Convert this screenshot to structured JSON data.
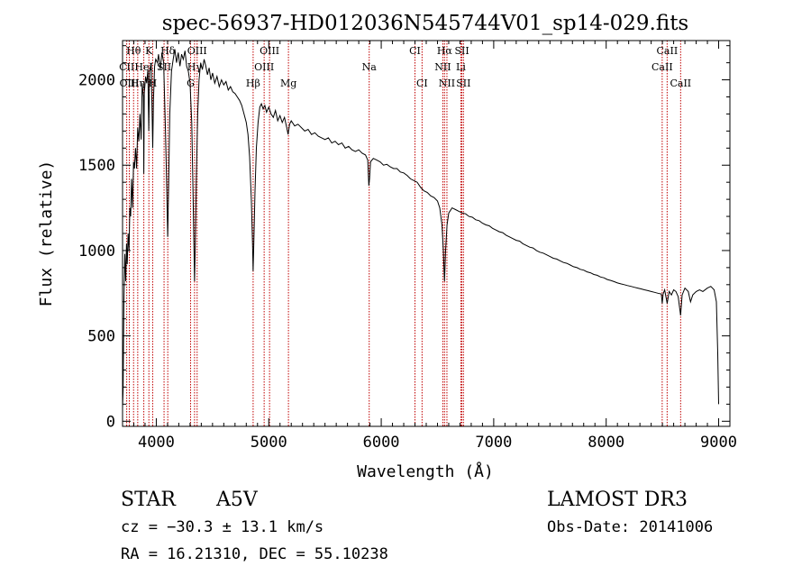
{
  "chart_data": {
    "type": "line",
    "title": "spec-56937-HD012036N545744V01_sp14-029.fits",
    "xlabel": "Wavelength (Å)",
    "ylabel": "Flux (relative)",
    "xlim": [
      3700,
      9100
    ],
    "ylim": [
      -30,
      2230
    ],
    "x_ticks": [
      4000,
      5000,
      6000,
      7000,
      8000,
      9000
    ],
    "y_ticks": [
      0,
      500,
      1000,
      1500,
      2000
    ],
    "series": [
      {
        "name": "flux",
        "points": [
          [
            3700,
            80
          ],
          [
            3705,
            180
          ],
          [
            3712,
            700
          ],
          [
            3720,
            980
          ],
          [
            3728,
            820
          ],
          [
            3735,
            1040
          ],
          [
            3742,
            920
          ],
          [
            3750,
            1100
          ],
          [
            3758,
            1000
          ],
          [
            3765,
            1250
          ],
          [
            3772,
            1200
          ],
          [
            3780,
            1420
          ],
          [
            3790,
            1250
          ],
          [
            3798,
            1520
          ],
          [
            3806,
            1480
          ],
          [
            3815,
            1600
          ],
          [
            3825,
            1480
          ],
          [
            3835,
            1720
          ],
          [
            3845,
            1640
          ],
          [
            3855,
            1800
          ],
          [
            3865,
            1650
          ],
          [
            3875,
            1980
          ],
          [
            3885,
            1900
          ],
          [
            3889,
            1450
          ],
          [
            3893,
            1920
          ],
          [
            3905,
            2020
          ],
          [
            3915,
            1980
          ],
          [
            3925,
            2060
          ],
          [
            3933,
            1700
          ],
          [
            3940,
            2050
          ],
          [
            3955,
            2100
          ],
          [
            3968,
            1600
          ],
          [
            3975,
            1880
          ],
          [
            3985,
            2080
          ],
          [
            3995,
            2120
          ],
          [
            4010,
            2100
          ],
          [
            4020,
            2150
          ],
          [
            4035,
            2060
          ],
          [
            4050,
            2160
          ],
          [
            4065,
            2100
          ],
          [
            4080,
            1750
          ],
          [
            4092,
            1400
          ],
          [
            4101,
            1080
          ],
          [
            4110,
            1400
          ],
          [
            4120,
            1800
          ],
          [
            4135,
            2050
          ],
          [
            4150,
            2120
          ],
          [
            4165,
            2180
          ],
          [
            4180,
            2100
          ],
          [
            4195,
            2160
          ],
          [
            4210,
            2080
          ],
          [
            4225,
            2150
          ],
          [
            4240,
            2120
          ],
          [
            4255,
            2170
          ],
          [
            4270,
            2080
          ],
          [
            4285,
            2050
          ],
          [
            4300,
            1980
          ],
          [
            4315,
            1750
          ],
          [
            4325,
            1400
          ],
          [
            4335,
            1000
          ],
          [
            4340,
            820
          ],
          [
            4346,
            1000
          ],
          [
            4355,
            1400
          ],
          [
            4368,
            1800
          ],
          [
            4380,
            2000
          ],
          [
            4395,
            2100
          ],
          [
            4410,
            2060
          ],
          [
            4425,
            2120
          ],
          [
            4440,
            2080
          ],
          [
            4455,
            2030
          ],
          [
            4470,
            2070
          ],
          [
            4485,
            2000
          ],
          [
            4500,
            2040
          ],
          [
            4520,
            1980
          ],
          [
            4540,
            2020
          ],
          [
            4560,
            1960
          ],
          [
            4580,
            2000
          ],
          [
            4600,
            1970
          ],
          [
            4620,
            1990
          ],
          [
            4640,
            1940
          ],
          [
            4660,
            1960
          ],
          [
            4680,
            1930
          ],
          [
            4700,
            1920
          ],
          [
            4720,
            1900
          ],
          [
            4740,
            1880
          ],
          [
            4760,
            1850
          ],
          [
            4780,
            1800
          ],
          [
            4800,
            1750
          ],
          [
            4815,
            1680
          ],
          [
            4830,
            1550
          ],
          [
            4845,
            1300
          ],
          [
            4855,
            1050
          ],
          [
            4861,
            880
          ],
          [
            4867,
            1050
          ],
          [
            4878,
            1350
          ],
          [
            4890,
            1600
          ],
          [
            4905,
            1750
          ],
          [
            4920,
            1840
          ],
          [
            4935,
            1860
          ],
          [
            4950,
            1830
          ],
          [
            4965,
            1850
          ],
          [
            4980,
            1810
          ],
          [
            5000,
            1840
          ],
          [
            5020,
            1800
          ],
          [
            5040,
            1780
          ],
          [
            5060,
            1820
          ],
          [
            5080,
            1760
          ],
          [
            5100,
            1790
          ],
          [
            5120,
            1750
          ],
          [
            5140,
            1780
          ],
          [
            5160,
            1720
          ],
          [
            5172,
            1680
          ],
          [
            5185,
            1740
          ],
          [
            5200,
            1760
          ],
          [
            5230,
            1730
          ],
          [
            5260,
            1740
          ],
          [
            5290,
            1720
          ],
          [
            5320,
            1700
          ],
          [
            5350,
            1710
          ],
          [
            5380,
            1680
          ],
          [
            5410,
            1690
          ],
          [
            5440,
            1670
          ],
          [
            5470,
            1660
          ],
          [
            5500,
            1650
          ],
          [
            5530,
            1660
          ],
          [
            5560,
            1630
          ],
          [
            5590,
            1640
          ],
          [
            5620,
            1620
          ],
          [
            5650,
            1630
          ],
          [
            5680,
            1600
          ],
          [
            5710,
            1610
          ],
          [
            5740,
            1590
          ],
          [
            5770,
            1580
          ],
          [
            5800,
            1590
          ],
          [
            5830,
            1570
          ],
          [
            5860,
            1560
          ],
          [
            5880,
            1530
          ],
          [
            5890,
            1380
          ],
          [
            5896,
            1420
          ],
          [
            5905,
            1520
          ],
          [
            5930,
            1540
          ],
          [
            5960,
            1530
          ],
          [
            5990,
            1520
          ],
          [
            6020,
            1500
          ],
          [
            6050,
            1505
          ],
          [
            6080,
            1490
          ],
          [
            6110,
            1480
          ],
          [
            6140,
            1480
          ],
          [
            6170,
            1460
          ],
          [
            6200,
            1455
          ],
          [
            6230,
            1440
          ],
          [
            6260,
            1420
          ],
          [
            6290,
            1410
          ],
          [
            6320,
            1400
          ],
          [
            6350,
            1370
          ],
          [
            6380,
            1350
          ],
          [
            6410,
            1340
          ],
          [
            6440,
            1320
          ],
          [
            6470,
            1310
          ],
          [
            6500,
            1290
          ],
          [
            6520,
            1250
          ],
          [
            6540,
            1150
          ],
          [
            6552,
            1000
          ],
          [
            6563,
            820
          ],
          [
            6572,
            1000
          ],
          [
            6585,
            1150
          ],
          [
            6600,
            1220
          ],
          [
            6630,
            1250
          ],
          [
            6660,
            1240
          ],
          [
            6690,
            1230
          ],
          [
            6720,
            1220
          ],
          [
            6750,
            1215
          ],
          [
            6780,
            1200
          ],
          [
            6810,
            1195
          ],
          [
            6840,
            1180
          ],
          [
            6870,
            1175
          ],
          [
            6900,
            1160
          ],
          [
            6930,
            1150
          ],
          [
            6960,
            1145
          ],
          [
            6990,
            1130
          ],
          [
            7020,
            1120
          ],
          [
            7050,
            1110
          ],
          [
            7080,
            1105
          ],
          [
            7110,
            1090
          ],
          [
            7140,
            1080
          ],
          [
            7170,
            1070
          ],
          [
            7200,
            1060
          ],
          [
            7230,
            1055
          ],
          [
            7260,
            1040
          ],
          [
            7290,
            1030
          ],
          [
            7320,
            1020
          ],
          [
            7350,
            1015
          ],
          [
            7380,
            1000
          ],
          [
            7410,
            990
          ],
          [
            7440,
            985
          ],
          [
            7470,
            975
          ],
          [
            7500,
            965
          ],
          [
            7530,
            955
          ],
          [
            7560,
            950
          ],
          [
            7590,
            940
          ],
          [
            7620,
            930
          ],
          [
            7650,
            925
          ],
          [
            7680,
            915
          ],
          [
            7710,
            905
          ],
          [
            7740,
            900
          ],
          [
            7770,
            890
          ],
          [
            7800,
            885
          ],
          [
            7830,
            875
          ],
          [
            7860,
            870
          ],
          [
            7890,
            860
          ],
          [
            7920,
            855
          ],
          [
            7950,
            845
          ],
          [
            7980,
            840
          ],
          [
            8010,
            830
          ],
          [
            8040,
            825
          ],
          [
            8070,
            818
          ],
          [
            8100,
            810
          ],
          [
            8130,
            805
          ],
          [
            8160,
            800
          ],
          [
            8190,
            795
          ],
          [
            8220,
            790
          ],
          [
            8250,
            785
          ],
          [
            8280,
            780
          ],
          [
            8310,
            775
          ],
          [
            8340,
            770
          ],
          [
            8370,
            765
          ],
          [
            8400,
            760
          ],
          [
            8430,
            755
          ],
          [
            8460,
            750
          ],
          [
            8490,
            745
          ],
          [
            8498,
            690
          ],
          [
            8506,
            745
          ],
          [
            8520,
            770
          ],
          [
            8542,
            690
          ],
          [
            8560,
            760
          ],
          [
            8580,
            740
          ],
          [
            8600,
            770
          ],
          [
            8620,
            760
          ],
          [
            8640,
            730
          ],
          [
            8662,
            620
          ],
          [
            8675,
            740
          ],
          [
            8700,
            780
          ],
          [
            8730,
            760
          ],
          [
            8750,
            700
          ],
          [
            8770,
            740
          ],
          [
            8800,
            760
          ],
          [
            8830,
            770
          ],
          [
            8860,
            760
          ],
          [
            8900,
            780
          ],
          [
            8930,
            790
          ],
          [
            8960,
            770
          ],
          [
            8980,
            700
          ],
          [
            8992,
            400
          ],
          [
            9000,
            100
          ]
        ]
      }
    ],
    "lines": [
      {
        "label": "Hθ",
        "wavelength": 3798,
        "row": 1
      },
      {
        "label": "CII",
        "wavelength": 3737,
        "row": 2
      },
      {
        "label": "OIII",
        "wavelength": 3760,
        "row": 3
      },
      {
        "label": "Hη",
        "wavelength": 3835,
        "row": 3
      },
      {
        "label": "HeI",
        "wavelength": 3889,
        "row": 2
      },
      {
        "label": "K",
        "wavelength": 3934,
        "row": 1
      },
      {
        "label": "H",
        "wavelength": 3968,
        "row": 3
      },
      {
        "label": "SII",
        "wavelength": 4069,
        "row": 2
      },
      {
        "label": "Hδ",
        "wavelength": 4102,
        "row": 1
      },
      {
        "label": "Hγ",
        "wavelength": 4340,
        "row": 2
      },
      {
        "label": "OIII",
        "wavelength": 4363,
        "row": 1
      },
      {
        "label": "G",
        "wavelength": 4305,
        "row": 3
      },
      {
        "label": "Hβ",
        "wavelength": 4861,
        "row": 3
      },
      {
        "label": "OIII",
        "wavelength": 4959,
        "row": 2
      },
      {
        "label": "OIII",
        "wavelength": 5007,
        "row": 1
      },
      {
        "label": "Mg",
        "wavelength": 5175,
        "row": 3
      },
      {
        "label": "Na",
        "wavelength": 5893,
        "row": 2
      },
      {
        "label": "CI",
        "wavelength": 6300,
        "row": 1
      },
      {
        "label": "CI",
        "wavelength": 6363,
        "row": 3
      },
      {
        "label": "Hα",
        "wavelength": 6563,
        "row": 1
      },
      {
        "label": "NII",
        "wavelength": 6548,
        "row": 2
      },
      {
        "label": "NII",
        "wavelength": 6584,
        "row": 3
      },
      {
        "label": "SII",
        "wavelength": 6717,
        "row": 1
      },
      {
        "label": "Li",
        "wavelength": 6708,
        "row": 2
      },
      {
        "label": "SII",
        "wavelength": 6731,
        "row": 3
      },
      {
        "label": "CaII",
        "wavelength": 8542,
        "row": 1
      },
      {
        "label": "CaII",
        "wavelength": 8498,
        "row": 2
      },
      {
        "label": "CaII",
        "wavelength": 8662,
        "row": 3
      }
    ]
  },
  "info": {
    "object_type": "STAR",
    "spectral_class": "A5V",
    "survey": "LAMOST DR3",
    "redshift": "cz = −30.3 ± 13.1 km/s",
    "obs_date": "Obs-Date: 20141006",
    "coords": "RA =  16.21310, DEC =  55.10238"
  },
  "colors": {
    "line_marker": "#c00000",
    "spectrum": "#000000"
  }
}
